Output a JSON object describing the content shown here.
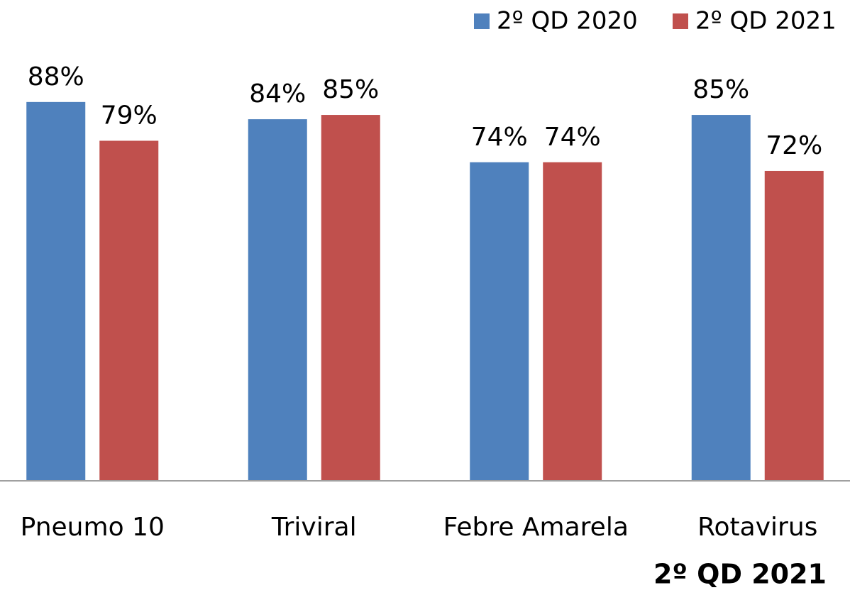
{
  "chart_data": {
    "type": "bar",
    "categories": [
      "Pneumo 10",
      "Triviral",
      "Febre Amarela",
      "Rotavirus"
    ],
    "series": [
      {
        "name": "2º QD 2020",
        "color": "#4f81bd",
        "values": [
          88,
          84,
          74,
          85
        ],
        "value_labels": [
          "88%",
          "84%",
          "74%",
          "85%"
        ]
      },
      {
        "name": "2º QD 2021",
        "color": "#c0504d",
        "values": [
          79,
          85,
          74,
          72
        ],
        "value_labels": [
          "79%",
          "85%",
          "74%",
          "72%"
        ]
      }
    ],
    "ylim": [
      0,
      100
    ],
    "legend": "top-right",
    "annotation": "2º QD 2021"
  }
}
